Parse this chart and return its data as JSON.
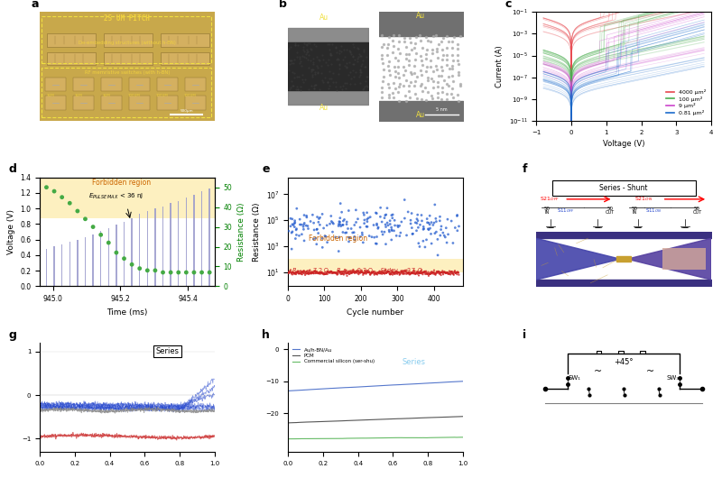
{
  "panel_c": {
    "xlabel": "Voltage (V)",
    "ylabel": "Current (A)",
    "legend": [
      "4000 μm²",
      "100 μm²",
      "9 μm²",
      "0.81 μm²"
    ],
    "colors": [
      "#e8474e",
      "#4caf50",
      "#cc44cc",
      "#1a6bcc"
    ]
  },
  "panel_d": {
    "xlabel": "Time (ms)",
    "ylabel_left": "Voltage (V)",
    "ylabel_right": "Resistance (Ω)",
    "bar_color": "#9999cc",
    "dot_color": "#44aa44"
  },
  "panel_e": {
    "xlabel": "Cycle number",
    "ylabel": "Resistance (Ω)",
    "dot_color_blue": "#1a55cc",
    "dot_color_red": "#cc2222"
  },
  "panel_g": {
    "colors": [
      "#2244cc",
      "#cc3333",
      "#888888"
    ]
  },
  "panel_h": {
    "legend": [
      "Au/h-BN/Au",
      "PCM",
      "Commercial silicon (ser-shu)"
    ],
    "legend_colors": [
      "#5577cc",
      "#555555",
      "#66bb66"
    ],
    "series_label": "Series",
    "series_color": "#88ccee"
  }
}
